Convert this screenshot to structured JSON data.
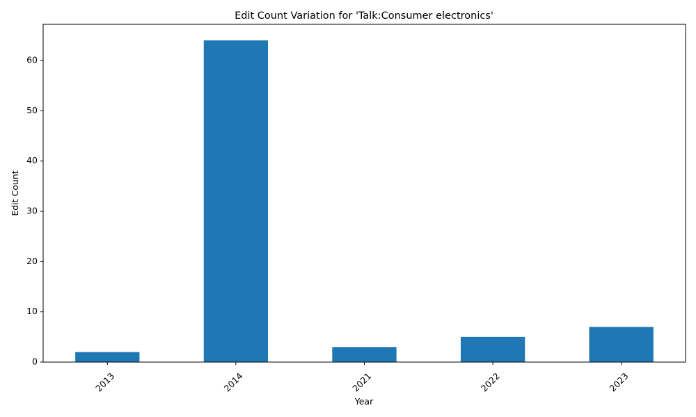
{
  "chart_data": {
    "type": "bar",
    "title": "Edit Count Variation for 'Talk:Consumer electronics'",
    "xlabel": "Year",
    "ylabel": "Edit Count",
    "categories": [
      "2013",
      "2014",
      "2021",
      "2022",
      "2023"
    ],
    "values": [
      2,
      64,
      3,
      5,
      7
    ],
    "ylim": [
      0,
      67.2
    ],
    "yticks": [
      0,
      10,
      20,
      30,
      40,
      50,
      60
    ],
    "bar_color": "#1f77b4",
    "grid": false,
    "legend": "none",
    "xtick_rotation": 45
  }
}
